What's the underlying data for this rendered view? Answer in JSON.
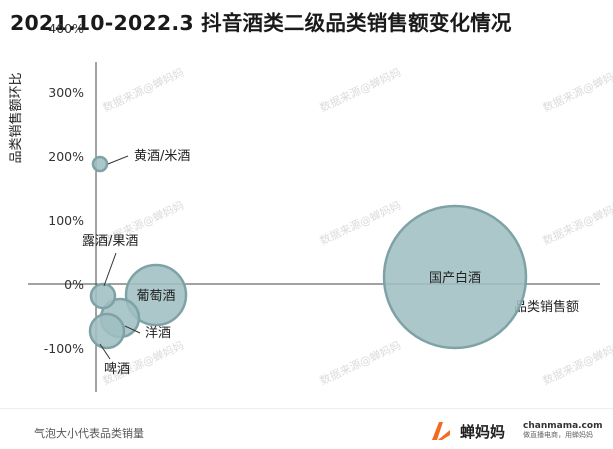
{
  "watermark": "数据来源@蝉妈妈",
  "footer_note": "气泡大小代表品类销量",
  "brand": {
    "name": "蝉妈妈",
    "url": "chanmama.com",
    "slogan": "做直播电商，用蝉妈妈",
    "accent_color": "#f26b21",
    "logo_icon": "chanmama-logo-icon"
  },
  "chart_data": {
    "type": "scatter",
    "title": "2021.10-2022.3 抖音酒类二级品类销售额变化情况",
    "xlabel": "品类销售额",
    "ylabel": "品类销售额环比",
    "yticks": [
      "400%",
      "300%",
      "200%",
      "100%",
      "0%",
      "-100%"
    ],
    "ylim": [
      -100,
      400
    ],
    "bubble_color": "#9fbfc3",
    "bubble_stroke": "#7fa2a6",
    "points": [
      {
        "label": "黄酒/米酒",
        "x": 0.5,
        "y": 245,
        "size": 0.6
      },
      {
        "label": "露酒/果酒",
        "x": 0.8,
        "y": 30,
        "size": 1.4
      },
      {
        "label": "葡萄酒",
        "x": 7.0,
        "y": 38,
        "size": 10
      },
      {
        "label": "洋酒",
        "x": 2.8,
        "y": 0,
        "size": 3.5
      },
      {
        "label": "啤酒",
        "x": 1.0,
        "y": -18,
        "size": 3.0
      },
      {
        "label": "国产白酒",
        "x": 48,
        "y": 58,
        "size": 48
      }
    ]
  }
}
